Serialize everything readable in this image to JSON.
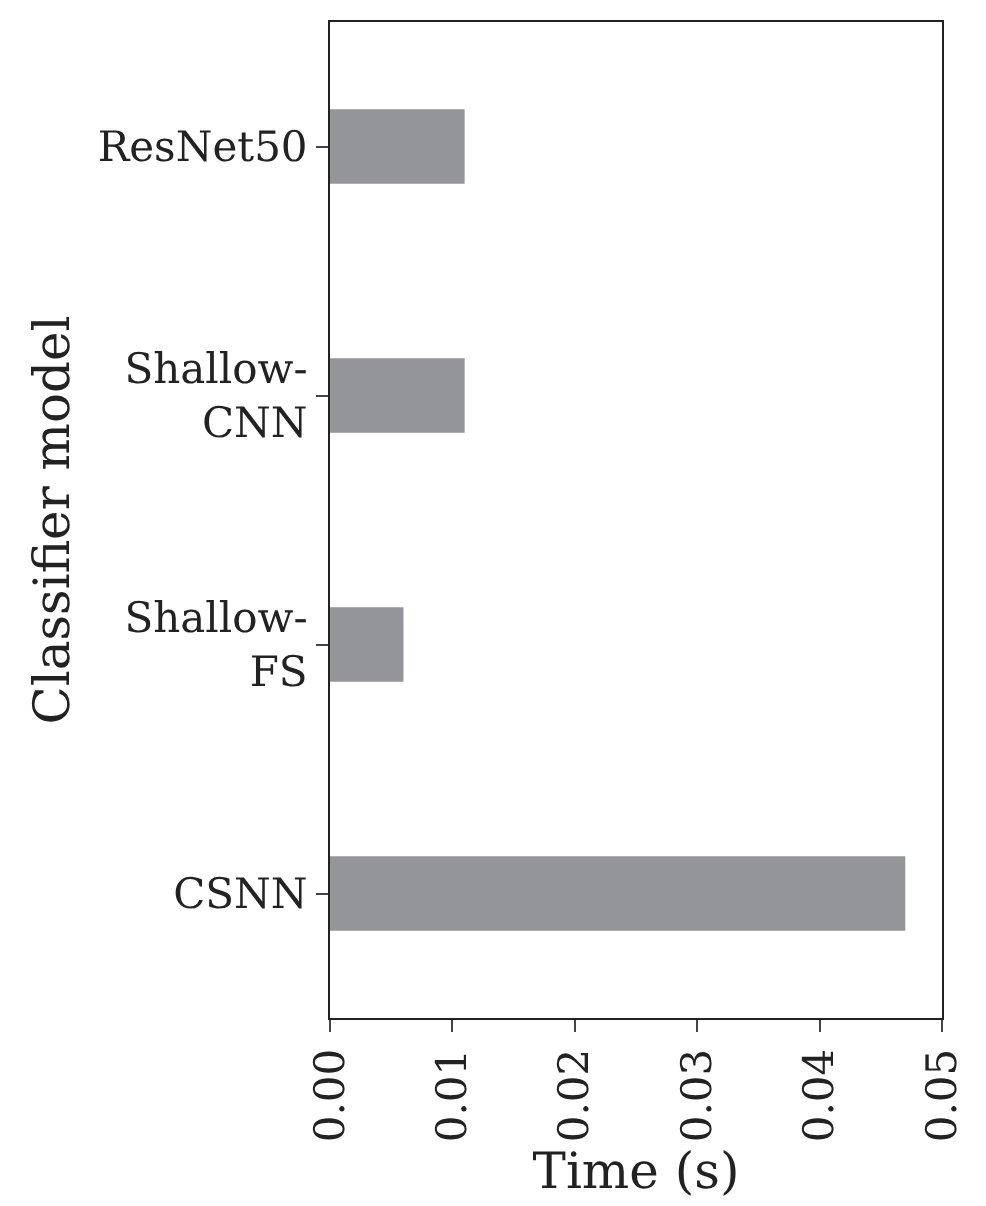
{
  "chart_data": {
    "type": "bar",
    "orientation": "horizontal",
    "xlabel": "Time (s)",
    "ylabel": "Classifier model",
    "categories": [
      "ResNet50",
      "Shallow-\nCNN",
      "Shallow-\nFS",
      "CSNN"
    ],
    "values": [
      0.011,
      0.011,
      0.006,
      0.047
    ],
    "color": "#939598",
    "xlim": [
      0,
      0.05
    ],
    "xticks": [
      {
        "value": 0,
        "label": "0.00"
      },
      0.01,
      0.02,
      0.03,
      0.04,
      0.05
    ]
  }
}
